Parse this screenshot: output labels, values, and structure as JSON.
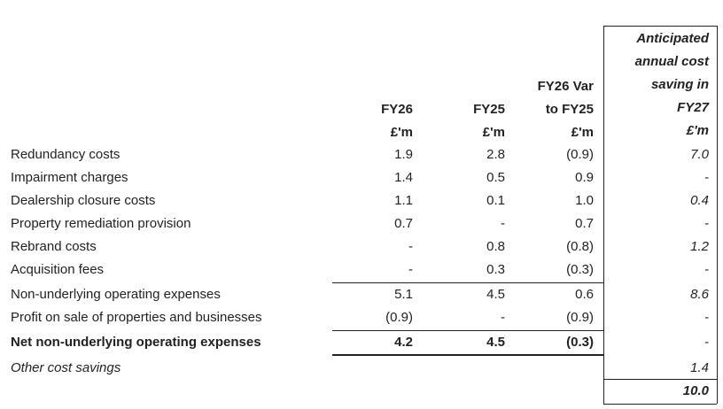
{
  "headers": {
    "col1": [
      "FY26",
      "£'m"
    ],
    "col2": [
      "FY25",
      "£'m"
    ],
    "col3": [
      "FY26 Var",
      "to FY25",
      "£'m"
    ],
    "col4": [
      "Anticipated",
      "annual cost",
      "saving in",
      "FY27",
      "£'m"
    ]
  },
  "rows": [
    {
      "label": "Redundancy costs",
      "fy26": "1.9",
      "fy25": "2.8",
      "var": "(0.9)",
      "saving": "7.0"
    },
    {
      "label": "Impairment charges",
      "fy26": "1.4",
      "fy25": "0.5",
      "var": "0.9",
      "saving": "-"
    },
    {
      "label": "Dealership closure costs",
      "fy26": "1.1",
      "fy25": "0.1",
      "var": "1.0",
      "saving": "0.4"
    },
    {
      "label": "Property remediation provision",
      "fy26": "0.7",
      "fy25": "-",
      "var": "0.7",
      "saving": "-"
    },
    {
      "label": "Rebrand costs",
      "fy26": "-",
      "fy25": "0.8",
      "var": "(0.8)",
      "saving": "1.2"
    },
    {
      "label": "Acquisition fees",
      "fy26": "-",
      "fy25": "0.3",
      "var": "(0.3)",
      "saving": "-"
    },
    {
      "label": "Non-underlying operating expenses",
      "fy26": "5.1",
      "fy25": "4.5",
      "var": "0.6",
      "saving": "8.6"
    },
    {
      "label": "Profit on sale of properties and businesses",
      "fy26": "(0.9)",
      "fy25": "-",
      "var": "(0.9)",
      "saving": "-"
    },
    {
      "label": "Net non-underlying operating expenses",
      "fy26": "4.2",
      "fy25": "4.5",
      "var": "(0.3)",
      "saving": "-"
    },
    {
      "label": "Other cost savings",
      "fy26": "",
      "fy25": "",
      "var": "",
      "saving": "1.4"
    }
  ],
  "total": {
    "saving": "10.0"
  }
}
